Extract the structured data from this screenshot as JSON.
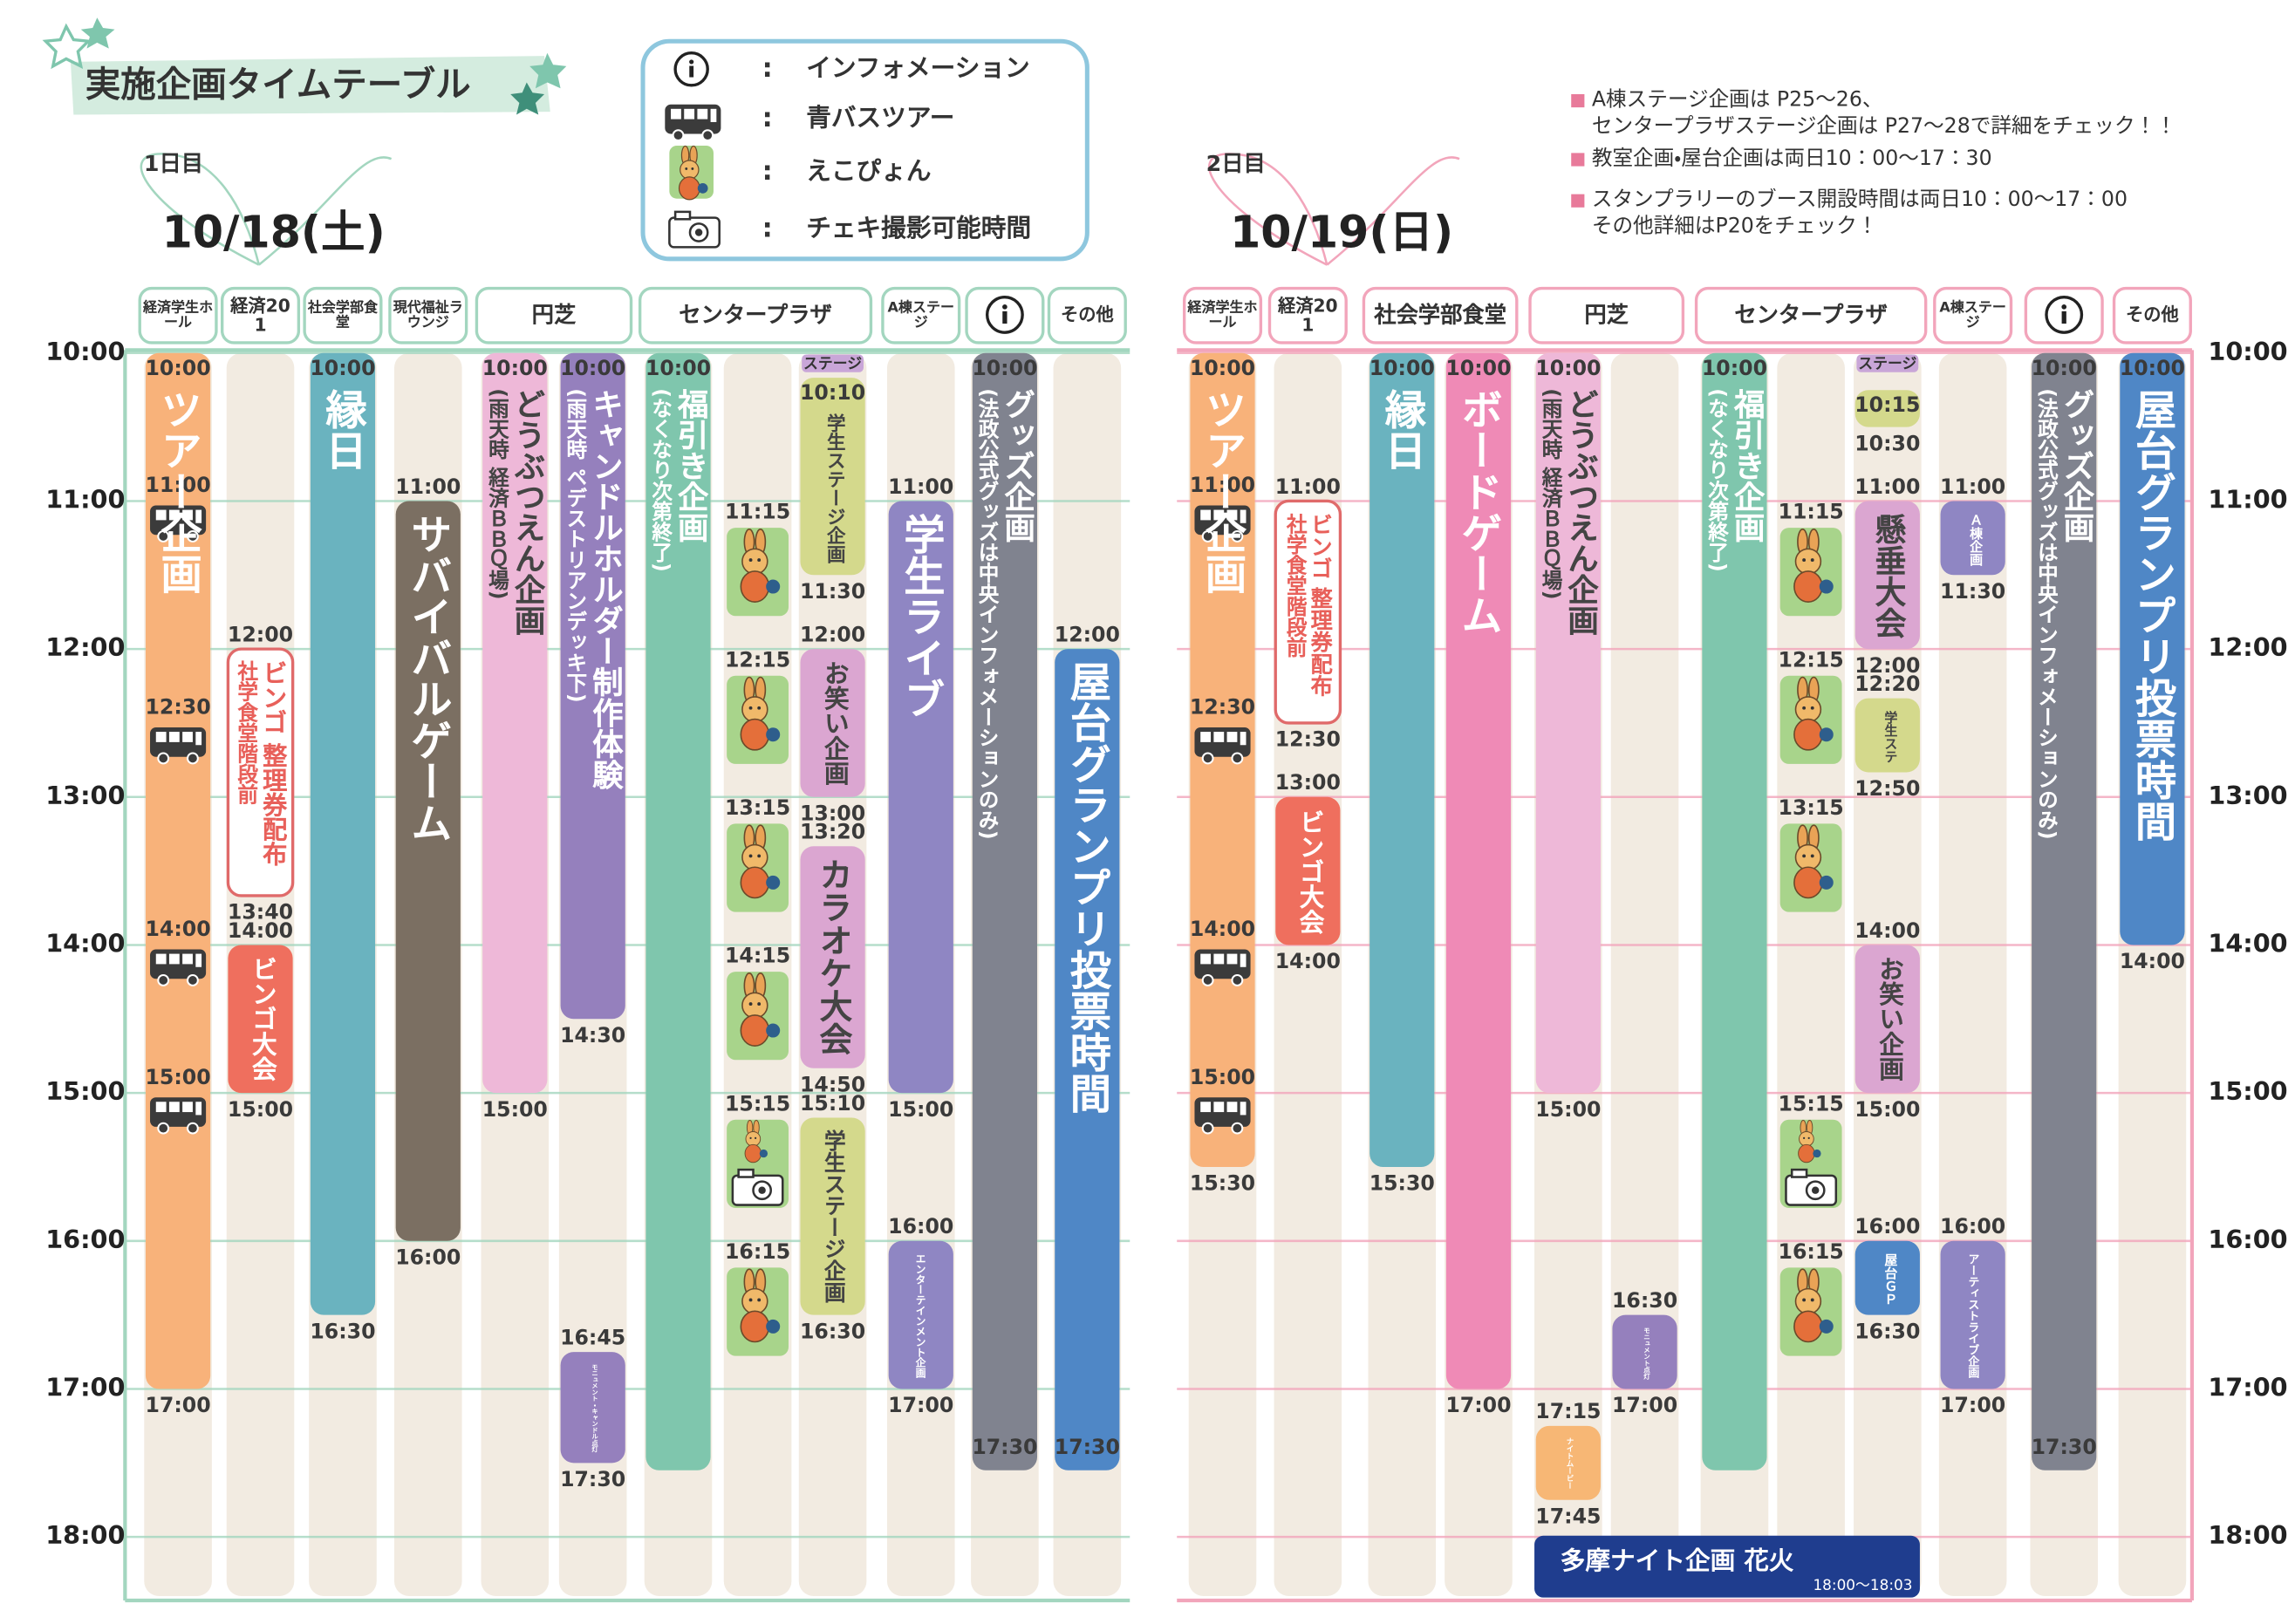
{
  "header": {
    "title": "実施企画タイムテーブル"
  },
  "legend": {
    "items": [
      "インフォメーション",
      "青バスツアー",
      "えこぴょん",
      "チェキ撮影可能時間"
    ]
  },
  "notes": [
    "A棟ステージ企画は P25～26、\nセンタープラザステージ企画は P27～28で詳細をチェック！！",
    "教室企画・屋台企画は両日10：00～17：30",
    "スタンプラリーのブース開設時間は両日10：00～17：00\nその他詳細はP20をチェック！"
  ],
  "days": [
    {
      "label": "1日目",
      "date": "10/18(土)",
      "axis": [
        {
          "value": 10,
          "label": "10:00"
        },
        {
          "value": 11,
          "label": "11:00"
        },
        {
          "value": 12,
          "label": "12:00"
        },
        {
          "value": 13,
          "label": "13:00"
        },
        {
          "value": 14,
          "label": "14:00"
        },
        {
          "value": 15,
          "label": "15:00"
        },
        {
          "value": 16,
          "label": "16:00"
        },
        {
          "value": 17,
          "label": "17:00"
        },
        {
          "value": 18,
          "label": "18:00"
        }
      ],
      "columns": [
        {
          "header": "経済学生ホール",
          "lanes": [
            {
              "events": [
                {
                  "start": 10,
                  "end": 17,
                  "title": "ツアー企画",
                  "color": "#f8b27a",
                  "times": [
                    "10:00",
                    "17:00"
                  ]
                }
              ],
              "markers": [
                {
                  "time": "11:00",
                  "icon": "bus"
                },
                {
                  "time": "12:30",
                  "icon": "bus"
                },
                {
                  "time": "14:00",
                  "icon": "bus"
                },
                {
                  "time": "15:00",
                  "icon": "bus"
                }
              ]
            }
          ]
        },
        {
          "header": "経済201",
          "lanes": [
            {
              "events": [
                {
                  "start": 12,
                  "end": 13.667,
                  "title": "ビンゴ 整理券配布",
                  "note": "社学食堂階段前",
                  "color": "#ffffff",
                  "border": "#e06a6a",
                  "text_color": "#e8605a",
                  "times": [
                    "12:00",
                    "13:40"
                  ]
                },
                {
                  "start": 14,
                  "end": 15,
                  "title": "ビンゴ大会",
                  "color": "#ef6f5e",
                  "times": [
                    "14:00",
                    "15:00"
                  ]
                }
              ]
            }
          ]
        },
        {
          "header": "社会学部食堂",
          "lanes": [
            {
              "events": [
                {
                  "start": 10,
                  "end": 16.5,
                  "title": "縁日",
                  "color": "#6ab3bf",
                  "times": [
                    "10:00",
                    "16:30"
                  ]
                }
              ]
            }
          ]
        },
        {
          "header": "現代福祉ラウンジ",
          "lanes": [
            {
              "events": [
                {
                  "start": 11,
                  "end": 16,
                  "title": "サバイバルゲーム",
                  "color": "#7b6f62",
                  "times": [
                    "11:00",
                    "16:00"
                  ]
                }
              ]
            }
          ]
        },
        {
          "header": "円芝",
          "lanes": [
            {
              "events": [
                {
                  "start": 10,
                  "end": 15,
                  "title": "どうぶつえん企画",
                  "note": "(雨天時 経済ＢＢＱ場)",
                  "color": "#eeb8d8",
                  "text_color": "#444444",
                  "times": [
                    "10:00",
                    "15:00"
                  ]
                }
              ]
            },
            {
              "events": [
                {
                  "start": 10,
                  "end": 14.5,
                  "title": "キャンドルホルダー制作体験",
                  "note": "(雨天時 ペデストリアンデッキ下)",
                  "color": "#9580bd",
                  "times": [
                    "10:00",
                    "14:30"
                  ]
                },
                {
                  "start": 16.75,
                  "end": 17.5,
                  "title": "モニュメント・キャンドル点灯",
                  "color": "#9580bd",
                  "times": [
                    "16:45",
                    "17:30"
                  ]
                }
              ]
            }
          ]
        },
        {
          "header": "センタープラザ",
          "lanes": [
            {
              "events": [
                {
                  "start": 10,
                  "end": 17.55,
                  "title": "福引き企画",
                  "note": "(なくなり次第終了)",
                  "color": "#7fc6ad",
                  "times": [
                    "10:00"
                  ]
                }
              ]
            },
            {
              "markers": [
                {
                  "time": "11:15",
                  "icon": "ekopyon"
                },
                {
                  "time": "12:15",
                  "icon": "ekopyon"
                },
                {
                  "time": "13:15",
                  "icon": "ekopyon"
                },
                {
                  "time": "14:15",
                  "icon": "ekopyon"
                },
                {
                  "time": "15:15",
                  "icon": "ekopyon-camera"
                },
                {
                  "time": "16:15",
                  "icon": "ekopyon"
                }
              ]
            },
            {
              "label": "ステージ",
              "events": [
                {
                  "start": 10.167,
                  "end": 11.5,
                  "title": "学生ステージ企画",
                  "color": "#d4d98c",
                  "text_color": "#444444",
                  "times": [
                    "10:10",
                    "11:30"
                  ]
                },
                {
                  "start": 12,
                  "end": 13,
                  "title": "お笑い企画",
                  "color": "#dba6d1",
                  "text_color": "#444444",
                  "times": [
                    "12:00",
                    "13:00"
                  ]
                },
                {
                  "start": 13.333,
                  "end": 14.833,
                  "title": "カラオケ大会",
                  "color": "#dba6d1",
                  "text_color": "#444444",
                  "times": [
                    "13:20",
                    "14:50"
                  ]
                },
                {
                  "start": 15.167,
                  "end": 16.5,
                  "title": "学生ステージ企画",
                  "color": "#d4d98c",
                  "text_color": "#444444",
                  "times": [
                    "15:10",
                    "16:30"
                  ]
                }
              ]
            }
          ]
        },
        {
          "header": "A棟ステージ",
          "lanes": [
            {
              "events": [
                {
                  "start": 11,
                  "end": 15,
                  "title": "学生ライブ",
                  "color": "#8f86c3",
                  "times": [
                    "11:00",
                    "15:00"
                  ]
                },
                {
                  "start": 16,
                  "end": 17,
                  "title": "エンターテインメント企画",
                  "color": "#8f86c3",
                  "times": [
                    "16:00",
                    "17:00"
                  ]
                }
              ]
            }
          ]
        },
        {
          "lanes": [
            {
              "events": [
                {
                  "start": 10,
                  "end": 17.55,
                  "title": "グッズ企画",
                  "note": "(法政公式グッズは中央インフォメーションのみ)",
                  "color": "#80838f",
                  "times": [
                    "10:00",
                    "17:30"
                  ]
                }
              ]
            }
          ]
        },
        {
          "header": "その他",
          "lanes": [
            {
              "events": [
                {
                  "start": 12,
                  "end": 17.55,
                  "title": "屋台グランプリ投票時間",
                  "color": "#4f87c6",
                  "times": [
                    "12:00",
                    "17:30"
                  ]
                }
              ]
            }
          ]
        }
      ]
    },
    {
      "label": "2日目",
      "date": "10/19(日)",
      "axis": [
        {
          "value": 10,
          "label": "10:00"
        },
        {
          "value": 11,
          "label": "11:00"
        },
        {
          "value": 12,
          "label": "12:00"
        },
        {
          "value": 13,
          "label": "13:00"
        },
        {
          "value": 14,
          "label": "14:00"
        },
        {
          "value": 15,
          "label": "15:00"
        },
        {
          "value": 16,
          "label": "16:00"
        },
        {
          "value": 17,
          "label": "17:00"
        },
        {
          "value": 18,
          "label": "18:00"
        }
      ],
      "columns": [
        {
          "header": "経済学生ホール",
          "lanes": [
            {
              "events": [
                {
                  "start": 10,
                  "end": 15.5,
                  "title": "ツアー企画",
                  "color": "#f8b27a",
                  "times": [
                    "10:00",
                    "15:30"
                  ]
                }
              ],
              "markers": [
                {
                  "time": "11:00",
                  "icon": "bus"
                },
                {
                  "time": "12:30",
                  "icon": "bus"
                },
                {
                  "time": "14:00",
                  "icon": "bus"
                },
                {
                  "time": "15:00",
                  "icon": "bus"
                }
              ]
            }
          ]
        },
        {
          "header": "経済201",
          "lanes": [
            {
              "events": [
                {
                  "start": 11,
                  "end": 12.5,
                  "title": "ビンゴ 整理券配布",
                  "note": "社学食堂階段前",
                  "color": "#ffffff",
                  "border": "#e06a6a",
                  "text_color": "#e8605a",
                  "times": [
                    "11:00",
                    "12:30"
                  ]
                },
                {
                  "start": 13,
                  "end": 14,
                  "title": "ビンゴ大会",
                  "color": "#ef6f5e",
                  "times": [
                    "13:00",
                    "14:00"
                  ]
                }
              ]
            }
          ]
        },
        {
          "header": "社会学部食堂",
          "lanes": [
            {
              "events": [
                {
                  "start": 10,
                  "end": 15.5,
                  "title": "縁日",
                  "color": "#6ab3bf",
                  "times": [
                    "10:00",
                    "15:30"
                  ]
                }
              ]
            },
            {
              "events": [
                {
                  "start": 10,
                  "end": 17,
                  "title": "ボードゲーム",
                  "color": "#ef8ab6",
                  "times": [
                    "10:00",
                    "17:00"
                  ]
                }
              ]
            }
          ]
        },
        {
          "header": "円芝",
          "lanes": [
            {
              "events": [
                {
                  "start": 10,
                  "end": 15,
                  "title": "どうぶつえん企画",
                  "note": "(雨天時 経済ＢＢＱ場)",
                  "color": "#eeb8d8",
                  "text_color": "#444444",
                  "times": [
                    "10:00",
                    "15:00"
                  ]
                },
                {
                  "start": 17.25,
                  "end": 17.75,
                  "title": "ナイトムービー",
                  "color": "#f7b775",
                  "times": [
                    "17:15",
                    "17:45"
                  ]
                }
              ]
            },
            {
              "events": [
                {
                  "start": 16.5,
                  "end": 17,
                  "title": "モニュメント点灯",
                  "color": "#9580bd",
                  "times": [
                    "16:30",
                    "17:00"
                  ]
                }
              ]
            }
          ]
        },
        {
          "header": "センタープラザ",
          "lanes": [
            {
              "events": [
                {
                  "start": 10,
                  "end": 17.55,
                  "title": "福引き企画",
                  "note": "(なくなり次第終了)",
                  "color": "#7fc6ad",
                  "times": [
                    "10:00"
                  ]
                }
              ]
            },
            {
              "markers": [
                {
                  "time": "11:15",
                  "icon": "ekopyon"
                },
                {
                  "time": "12:15",
                  "icon": "ekopyon"
                },
                {
                  "time": "13:15",
                  "icon": "ekopyon"
                },
                {
                  "time": "15:15",
                  "icon": "ekopyon-camera"
                },
                {
                  "time": "16:15",
                  "icon": "ekopyon"
                }
              ]
            },
            {
              "label": "ステージ",
              "events": [
                {
                  "start": 10.25,
                  "end": 10.5,
                  "color": "#d4d98c",
                  "times": [
                    "10:15",
                    "10:30"
                  ]
                },
                {
                  "start": 11,
                  "end": 12,
                  "title": "懸垂大会",
                  "color": "#dba6d1",
                  "text_color": "#444444",
                  "times": [
                    "11:00",
                    "12:00"
                  ]
                },
                {
                  "start": 12.333,
                  "end": 12.833,
                  "title": "学生ステ",
                  "color": "#d4d98c",
                  "text_color": "#444444",
                  "times": [
                    "12:20",
                    "12:50"
                  ]
                },
                {
                  "start": 14,
                  "end": 15,
                  "title": "お笑い企画",
                  "color": "#dba6d1",
                  "text_color": "#444444",
                  "times": [
                    "14:00",
                    "15:00"
                  ]
                },
                {
                  "start": 16,
                  "end": 16.5,
                  "title": "屋台ＧＰ",
                  "color": "#4f87c6",
                  "times": [
                    "16:00",
                    "16:30"
                  ]
                }
              ]
            }
          ]
        },
        {
          "header": "A棟ステージ",
          "lanes": [
            {
              "events": [
                {
                  "start": 11,
                  "end": 11.5,
                  "title": "Ａ棟企画",
                  "color": "#8f86c3",
                  "times": [
                    "11:00",
                    "11:30"
                  ]
                },
                {
                  "start": 16,
                  "end": 17,
                  "title": "アーティストライブ企画",
                  "color": "#8f86c3",
                  "times": [
                    "16:00",
                    "17:00"
                  ]
                }
              ]
            }
          ]
        },
        {
          "lanes": [
            {
              "events": [
                {
                  "start": 10,
                  "end": 17.55,
                  "title": "グッズ企画",
                  "note": "(法政公式グッズは中央インフォメーションのみ)",
                  "color": "#80838f",
                  "times": [
                    "10:00",
                    "17:30"
                  ]
                }
              ]
            }
          ]
        },
        {
          "header": "その他",
          "lanes": [
            {
              "events": [
                {
                  "start": 10,
                  "end": 14,
                  "title": "屋台グランプリ投票時間",
                  "color": "#4f87c6",
                  "times": [
                    "10:00",
                    "14:00"
                  ]
                }
              ]
            }
          ]
        }
      ],
      "bottom_event": {
        "title": "多摩ナイト企画 花火",
        "time": "18:00〜18:03"
      }
    }
  ]
}
